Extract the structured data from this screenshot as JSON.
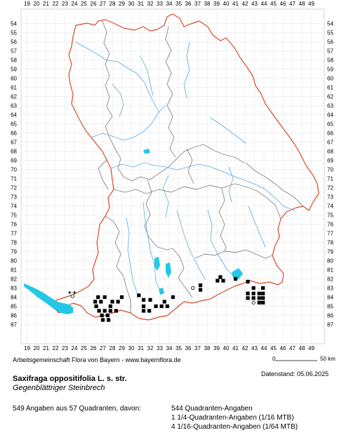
{
  "map": {
    "x_ticks": [
      "19",
      "20",
      "21",
      "22",
      "23",
      "24",
      "25",
      "26",
      "27",
      "28",
      "29",
      "30",
      "31",
      "32",
      "33",
      "34",
      "35",
      "36",
      "37",
      "38",
      "39",
      "40",
      "41",
      "42",
      "43",
      "44",
      "45",
      "46",
      "47",
      "48",
      "49"
    ],
    "y_ticks": [
      "54",
      "55",
      "56",
      "57",
      "58",
      "59",
      "60",
      "61",
      "62",
      "63",
      "64",
      "65",
      "66",
      "67",
      "68",
      "69",
      "70",
      "71",
      "72",
      "73",
      "74",
      "75",
      "76",
      "77",
      "78",
      "79",
      "80",
      "81",
      "82",
      "83",
      "84",
      "85",
      "86",
      "87"
    ],
    "colors": {
      "state_border": "#d84a2a",
      "district_border": "#888888",
      "rivers": "#5aa8e0",
      "lakes": "#22c8e6",
      "grid": "#d0d0d0",
      "occurrence": "#000000"
    },
    "occurrences": [
      {
        "x": 23.5,
        "y": 83.5,
        "status": "symbol-cross"
      },
      {
        "x": 24.0,
        "y": 83.5,
        "status": "symbol-cross"
      },
      {
        "x": 23.8,
        "y": 83.9,
        "status": "open-circle"
      },
      {
        "x": 26.5,
        "y": 84.0
      },
      {
        "x": 27.2,
        "y": 84.0
      },
      {
        "x": 26.2,
        "y": 84.5
      },
      {
        "x": 26.8,
        "y": 84.5
      },
      {
        "x": 28.0,
        "y": 84.5
      },
      {
        "x": 28.6,
        "y": 84.5
      },
      {
        "x": 26.3,
        "y": 85.0
      },
      {
        "x": 27.8,
        "y": 85.0
      },
      {
        "x": 26.6,
        "y": 85.5
      },
      {
        "x": 27.2,
        "y": 85.5
      },
      {
        "x": 27.8,
        "y": 85.5
      },
      {
        "x": 28.4,
        "y": 85.5
      },
      {
        "x": 26.9,
        "y": 86.0
      },
      {
        "x": 27.5,
        "y": 86.0
      },
      {
        "x": 27.0,
        "y": 86.5
      },
      {
        "x": 27.6,
        "y": 86.5
      },
      {
        "x": 29.0,
        "y": 84.0
      },
      {
        "x": 30.8,
        "y": 83.8
      },
      {
        "x": 31.3,
        "y": 84.3
      },
      {
        "x": 32.0,
        "y": 84.3
      },
      {
        "x": 31.3,
        "y": 85.0
      },
      {
        "x": 31.3,
        "y": 85.5
      },
      {
        "x": 31.9,
        "y": 85.5
      },
      {
        "x": 32.6,
        "y": 85.0
      },
      {
        "x": 33.2,
        "y": 85.0
      },
      {
        "x": 33.8,
        "y": 85.0
      },
      {
        "x": 33.5,
        "y": 84.5
      },
      {
        "x": 34.4,
        "y": 84.0
      },
      {
        "x": 36.5,
        "y": 83.0,
        "status": "open-circle"
      },
      {
        "x": 37.3,
        "y": 82.7
      },
      {
        "x": 37.3,
        "y": 83.2
      },
      {
        "x": 39.1,
        "y": 82.2
      },
      {
        "x": 39.7,
        "y": 82.2
      },
      {
        "x": 39.4,
        "y": 81.8
      },
      {
        "x": 41.0,
        "y": 82.0
      },
      {
        "x": 42.3,
        "y": 82.3
      },
      {
        "x": 42.3,
        "y": 83.6
      },
      {
        "x": 42.9,
        "y": 83.6
      },
      {
        "x": 43.5,
        "y": 83.6
      },
      {
        "x": 43.9,
        "y": 83.6
      },
      {
        "x": 42.9,
        "y": 83.0
      },
      {
        "x": 43.9,
        "y": 83.0
      },
      {
        "x": 42.3,
        "y": 84.1
      },
      {
        "x": 42.9,
        "y": 84.1
      },
      {
        "x": 43.5,
        "y": 84.1
      },
      {
        "x": 43.9,
        "y": 84.1
      },
      {
        "x": 43.5,
        "y": 84.6
      },
      {
        "x": 43.9,
        "y": 84.6
      },
      {
        "x": 42.9,
        "y": 84.6,
        "status": "open-circle"
      }
    ]
  },
  "credit": "Arbeitsgemeinschaft Flora von Bayern - www.bayernflora.de",
  "scale": {
    "start": "0",
    "end": "50 km"
  },
  "datestand": "Datenstand: 05.06.2025",
  "species": {
    "scientific_name": "Saxifraga oppositifolia L. s. str.",
    "common_name": "Gegenblättriger Steinbrech"
  },
  "summary": "549 Angaben aus 57 Quadranten, davon:",
  "quadrant_breakdown": [
    "544 Quadranten-Angaben",
    "1 1/4-Quadranten-Angaben (1/16 MTB)",
    "4 1/16-Quadranten-Angaben (1/64 MTB)"
  ]
}
